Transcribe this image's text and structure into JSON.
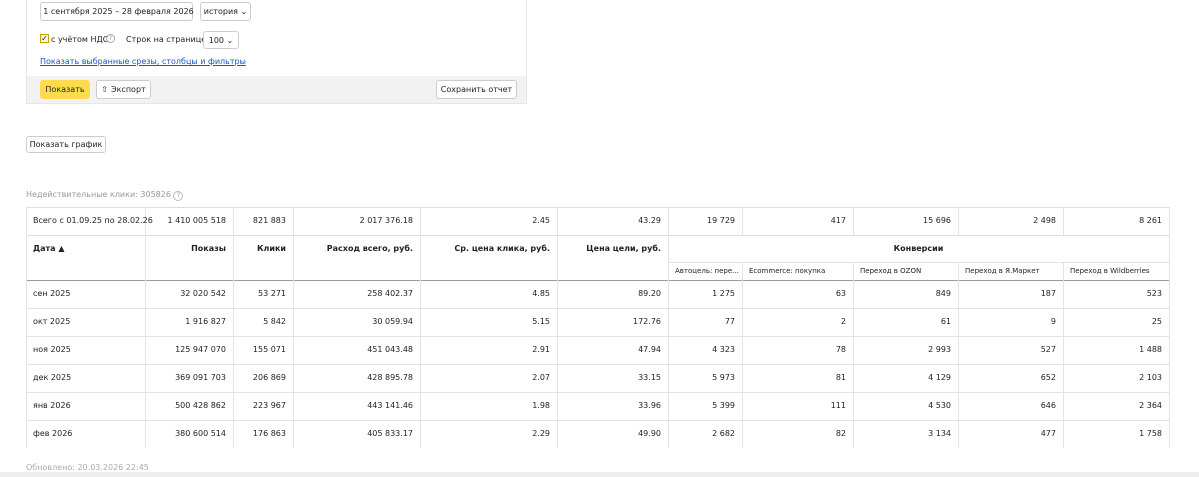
{
  "filters": {
    "date_range": "1 сентября 2025 – 28 февраля 2026",
    "mode": "история",
    "vat": "с учётом НДС",
    "rows_label": "Строк на странице",
    "rows_value": "100",
    "link": "Показать выбранные срезы, столбцы и фильтры",
    "show": "Показать",
    "export": "Экспорт",
    "save": "Сохранить отчет"
  },
  "show_chart": "Показать график",
  "invalid_clicks": "Недействительные клики: 305826",
  "table": {
    "total": [
      "Всего с 01.09.25 по 28.02.26",
      "1 410 005 518",
      "821 883",
      "2 017 376.18",
      "2.45",
      "43.29",
      "19 729",
      "417",
      "15 696",
      "2 498",
      "8 261"
    ],
    "headers": [
      "Дата ▲",
      "Показы",
      "Клики",
      "Расход всего, руб.",
      "Ср. цена клика, руб.",
      "Цена цели, руб.",
      "Конверсии"
    ],
    "subheaders": [
      "Автоцель: пере...",
      "Ecommerce: покупка",
      "Переход в OZON",
      "Переход в Я.Маркет",
      "Переход в Wildberries"
    ],
    "rows": [
      [
        "сен 2025",
        "32 020 542",
        "53 271",
        "258 402.37",
        "4.85",
        "89.20",
        "1 275",
        "63",
        "849",
        "187",
        "523"
      ],
      [
        "окт 2025",
        "1 916 827",
        "5 842",
        "30 059.94",
        "5.15",
        "172.76",
        "77",
        "2",
        "61",
        "9",
        "25"
      ],
      [
        "ноя 2025",
        "125 947 070",
        "155 071",
        "451 043.48",
        "2.91",
        "47.94",
        "4 323",
        "78",
        "2 993",
        "527",
        "1 488"
      ],
      [
        "дек 2025",
        "369 091 703",
        "206 869",
        "428 895.78",
        "2.07",
        "33.15",
        "5 973",
        "81",
        "4 129",
        "652",
        "2 103"
      ],
      [
        "янв 2026",
        "500 428 862",
        "223 967",
        "443 141.46",
        "1.98",
        "33.96",
        "5 399",
        "111",
        "4 530",
        "646",
        "2 364"
      ],
      [
        "фев 2026",
        "380 600 514",
        "176 863",
        "405 833.17",
        "2.29",
        "49.90",
        "2 682",
        "82",
        "3 134",
        "477",
        "1 758"
      ]
    ]
  },
  "updated": "Обновлено: 20.03.2026 22:45"
}
